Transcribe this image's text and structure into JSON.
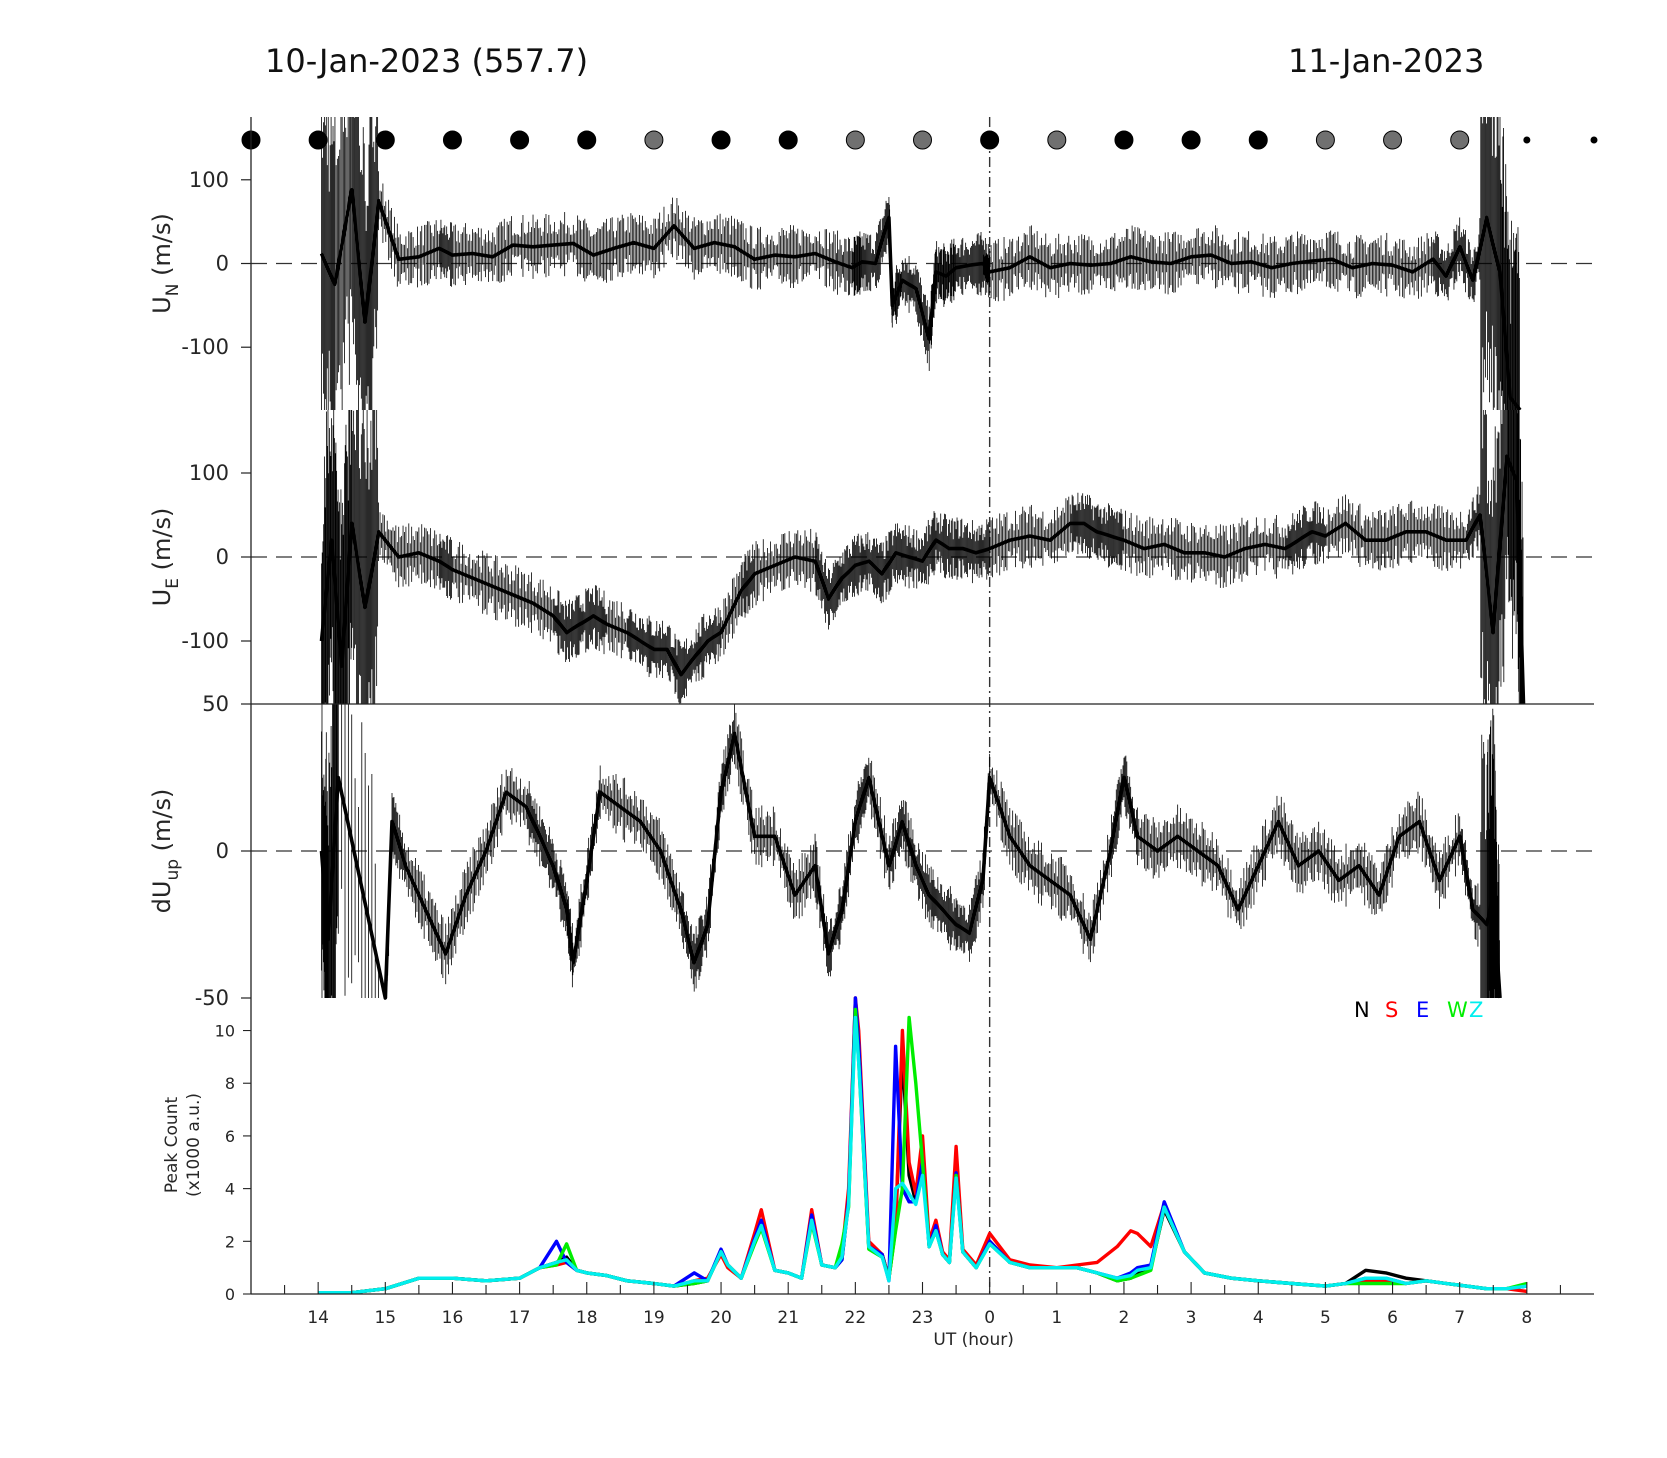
{
  "header": {
    "left": "10-Jan-2023 (557.7)",
    "right": "11-Jan-2023"
  },
  "colors": {
    "N": "#000000",
    "S": "#ff0000",
    "E": "#0000ff",
    "W": "#00ee00",
    "Z": "#00eeee",
    "dot_dark": "#000000",
    "dot_gray": "#707070"
  },
  "chart_data": [
    {
      "type": "line",
      "panel": "UN",
      "ylabel": "U",
      "ylabel_sub": "N",
      "ylabel_unit": "(m/s)",
      "ylim": [
        -175,
        175
      ],
      "yticks": [
        100,
        0,
        -100
      ],
      "x_range_hours": [
        13,
        33
      ],
      "sky_markers": [
        {
          "t": 13.0,
          "c": "dark"
        },
        {
          "t": 14.0,
          "c": "dark"
        },
        {
          "t": 15.0,
          "c": "dark"
        },
        {
          "t": 16.0,
          "c": "dark"
        },
        {
          "t": 17.0,
          "c": "dark"
        },
        {
          "t": 18.0,
          "c": "dark"
        },
        {
          "t": 19.0,
          "c": "gray"
        },
        {
          "t": 20.0,
          "c": "dark"
        },
        {
          "t": 21.0,
          "c": "dark"
        },
        {
          "t": 22.0,
          "c": "gray"
        },
        {
          "t": 23.0,
          "c": "gray"
        },
        {
          "t": 24.0,
          "c": "dark"
        },
        {
          "t": 25.0,
          "c": "gray"
        },
        {
          "t": 26.0,
          "c": "dark"
        },
        {
          "t": 27.0,
          "c": "dark"
        },
        {
          "t": 28.0,
          "c": "dark"
        },
        {
          "t": 29.0,
          "c": "gray"
        },
        {
          "t": 30.0,
          "c": "gray"
        },
        {
          "t": 31.0,
          "c": "gray"
        },
        {
          "t": 32.0,
          "c": "small"
        },
        {
          "t": 33.0,
          "c": "small"
        }
      ],
      "x": [
        14.05,
        14.25,
        14.5,
        14.7,
        14.9,
        15.2,
        15.5,
        15.8,
        16.0,
        16.3,
        16.6,
        16.9,
        17.2,
        17.5,
        17.8,
        18.1,
        18.4,
        18.7,
        19.0,
        19.3,
        19.6,
        19.9,
        20.2,
        20.5,
        20.8,
        21.1,
        21.4,
        21.7,
        21.95,
        22.1,
        22.3,
        22.5,
        22.55,
        22.7,
        22.9,
        23.1,
        23.2,
        23.35,
        23.5,
        23.7,
        23.9,
        24.0,
        24.3,
        24.6,
        24.9,
        25.2,
        25.5,
        25.8,
        26.1,
        26.4,
        26.7,
        27.0,
        27.3,
        27.6,
        27.9,
        28.2,
        28.5,
        28.8,
        29.1,
        29.4,
        29.7,
        30.0,
        30.3,
        30.6,
        30.8,
        31.0,
        31.2,
        31.4,
        31.6,
        31.75,
        31.9
      ],
      "y": [
        12,
        -25,
        88,
        -70,
        75,
        5,
        8,
        18,
        10,
        12,
        8,
        22,
        20,
        22,
        24,
        10,
        18,
        25,
        18,
        45,
        18,
        25,
        20,
        5,
        10,
        8,
        12,
        2,
        -5,
        2,
        0,
        55,
        -50,
        -20,
        -30,
        -90,
        -10,
        -15,
        -5,
        -2,
        0,
        -10,
        -5,
        8,
        -5,
        0,
        -2,
        0,
        8,
        2,
        0,
        8,
        10,
        0,
        2,
        -5,
        0,
        3,
        5,
        -5,
        0,
        -2,
        -10,
        5,
        -15,
        20,
        -20,
        55,
        -10,
        -160,
        -180
      ]
    },
    {
      "type": "line",
      "panel": "UE",
      "ylabel": "U",
      "ylabel_sub": "E",
      "ylabel_unit": "(m/s)",
      "ylim": [
        -175,
        175
      ],
      "yticks": [
        100,
        0,
        -100
      ],
      "x": [
        14.05,
        14.2,
        14.35,
        14.5,
        14.7,
        14.9,
        15.2,
        15.5,
        15.8,
        16.0,
        16.3,
        16.6,
        16.9,
        17.2,
        17.5,
        17.7,
        17.9,
        18.1,
        18.3,
        18.6,
        18.8,
        19.0,
        19.2,
        19.4,
        19.6,
        19.8,
        20.0,
        20.3,
        20.5,
        20.8,
        21.1,
        21.4,
        21.6,
        21.8,
        22.0,
        22.2,
        22.4,
        22.6,
        22.8,
        23.0,
        23.2,
        23.4,
        23.6,
        23.8,
        24.0,
        24.3,
        24.6,
        24.9,
        25.2,
        25.4,
        25.6,
        25.8,
        26.0,
        26.3,
        26.6,
        26.9,
        27.2,
        27.5,
        27.8,
        28.1,
        28.4,
        28.6,
        28.8,
        29.0,
        29.3,
        29.6,
        29.9,
        30.2,
        30.5,
        30.8,
        31.1,
        31.3,
        31.5,
        31.7,
        31.85,
        31.95
      ],
      "y": [
        -100,
        20,
        -130,
        40,
        -60,
        30,
        0,
        5,
        -5,
        -15,
        -25,
        -35,
        -45,
        -55,
        -70,
        -90,
        -80,
        -70,
        -80,
        -90,
        -100,
        -110,
        -110,
        -140,
        -120,
        -100,
        -90,
        -40,
        -20,
        -10,
        0,
        -5,
        -50,
        -25,
        -10,
        -5,
        -20,
        5,
        0,
        -5,
        20,
        10,
        10,
        5,
        10,
        20,
        25,
        20,
        40,
        40,
        30,
        25,
        20,
        10,
        15,
        5,
        5,
        0,
        10,
        15,
        10,
        20,
        30,
        25,
        40,
        20,
        20,
        30,
        30,
        20,
        20,
        50,
        -90,
        120,
        90,
        -180
      ]
    },
    {
      "type": "line",
      "panel": "dUup",
      "ylabel": "dU",
      "ylabel_sub": "up",
      "ylabel_unit": "(m/s)",
      "ylim": [
        -50,
        50
      ],
      "yticks": [
        50,
        0,
        -50
      ],
      "x": [
        14.05,
        14.15,
        14.3,
        15.0,
        15.1,
        15.3,
        15.6,
        15.9,
        16.2,
        16.5,
        16.8,
        17.1,
        17.3,
        17.5,
        17.7,
        17.8,
        18.0,
        18.2,
        18.5,
        18.8,
        19.1,
        19.4,
        19.6,
        19.8,
        20.0,
        20.2,
        20.5,
        20.8,
        21.1,
        21.4,
        21.6,
        21.8,
        22.0,
        22.2,
        22.5,
        22.7,
        22.9,
        23.1,
        23.3,
        23.5,
        23.7,
        23.9,
        24.0,
        24.3,
        24.6,
        24.9,
        25.2,
        25.5,
        25.8,
        26.0,
        26.2,
        26.5,
        26.8,
        27.1,
        27.4,
        27.7,
        28.0,
        28.3,
        28.6,
        28.9,
        29.2,
        29.5,
        29.8,
        30.1,
        30.4,
        30.7,
        31.0,
        31.2,
        31.4,
        31.5,
        31.6
      ],
      "y": [
        0,
        -30,
        25,
        -60,
        10,
        -5,
        -20,
        -35,
        -15,
        0,
        20,
        15,
        5,
        -5,
        -20,
        -38,
        -10,
        20,
        15,
        10,
        0,
        -20,
        -38,
        -25,
        20,
        40,
        5,
        5,
        -15,
        -5,
        -35,
        -20,
        10,
        25,
        -5,
        10,
        -5,
        -15,
        -20,
        -25,
        -28,
        -10,
        25,
        5,
        -5,
        -10,
        -15,
        -30,
        0,
        25,
        5,
        0,
        5,
        0,
        -5,
        -20,
        -5,
        10,
        -5,
        0,
        -10,
        -5,
        -15,
        5,
        10,
        -10,
        5,
        -20,
        -25,
        -15,
        -60
      ]
    },
    {
      "type": "line",
      "panel": "peak",
      "ylabel": "Peak Count",
      "ylabel_unit": "(x1000 a.u.)",
      "ylim": [
        0,
        10.4
      ],
      "yticks": [
        0,
        2,
        4,
        6,
        8,
        10
      ],
      "xlabel": "UT (hour)",
      "xticklabels": [
        "14",
        "15",
        "16",
        "17",
        "18",
        "19",
        "20",
        "21",
        "22",
        "23",
        "0",
        "1",
        "2",
        "3",
        "4",
        "5",
        "6",
        "7",
        "8"
      ],
      "legend": [
        "N",
        "S",
        "E",
        "W",
        "Z"
      ],
      "legend_placement": "top-right",
      "x": [
        14.0,
        14.5,
        15.0,
        15.5,
        16.0,
        16.5,
        17.0,
        17.3,
        17.55,
        17.7,
        17.85,
        18.0,
        18.3,
        18.6,
        19.0,
        19.3,
        19.6,
        19.8,
        20.0,
        20.1,
        20.3,
        20.5,
        20.6,
        20.8,
        21.0,
        21.2,
        21.35,
        21.5,
        21.7,
        21.8,
        21.9,
        22.0,
        22.05,
        22.2,
        22.4,
        22.5,
        22.6,
        22.7,
        22.8,
        22.9,
        23.0,
        23.1,
        23.2,
        23.3,
        23.4,
        23.5,
        23.6,
        23.8,
        24.0,
        24.3,
        24.6,
        25.0,
        25.3,
        25.6,
        25.9,
        26.1,
        26.2,
        26.4,
        26.6,
        26.9,
        27.2,
        27.6,
        28.0,
        28.5,
        29.0,
        29.3,
        29.6,
        29.9,
        30.2,
        30.5,
        30.8,
        31.1,
        31.4,
        31.7,
        32.0
      ],
      "series": [
        {
          "name": "N",
          "color_key": "N",
          "values": [
            0.05,
            0.05,
            0.2,
            0.6,
            0.6,
            0.5,
            0.6,
            1.0,
            1.2,
            1.4,
            0.9,
            0.8,
            0.7,
            0.5,
            0.4,
            0.3,
            0.4,
            0.5,
            1.6,
            1.1,
            0.6,
            2.0,
            2.6,
            0.9,
            0.8,
            0.6,
            2.9,
            1.1,
            1.0,
            1.3,
            3.5,
            11.0,
            9.0,
            1.8,
            1.5,
            0.6,
            2.5,
            9.2,
            4.5,
            3.5,
            5.5,
            1.8,
            2.5,
            1.5,
            1.2,
            4.8,
            1.6,
            1.0,
            2.0,
            1.2,
            1.0,
            1.0,
            1.0,
            0.8,
            0.5,
            0.6,
            0.8,
            1.0,
            3.2,
            1.6,
            0.8,
            0.6,
            0.5,
            0.4,
            0.3,
            0.4,
            0.9,
            0.8,
            0.6,
            0.5,
            0.4,
            0.3,
            0.2,
            0.2,
            0.3
          ]
        },
        {
          "name": "S",
          "color_key": "S",
          "values": [
            0.05,
            0.05,
            0.2,
            0.6,
            0.6,
            0.5,
            0.6,
            1.0,
            1.1,
            1.2,
            0.9,
            0.8,
            0.7,
            0.5,
            0.4,
            0.3,
            0.5,
            0.6,
            1.5,
            1.0,
            0.6,
            2.3,
            3.2,
            0.9,
            0.8,
            0.6,
            3.2,
            1.1,
            1.0,
            1.5,
            4.0,
            12.0,
            10.0,
            2.0,
            1.5,
            0.6,
            2.5,
            10.0,
            5.0,
            3.8,
            6.0,
            2.0,
            2.8,
            1.6,
            1.3,
            5.6,
            1.7,
            1.1,
            2.3,
            1.3,
            1.1,
            1.0,
            1.1,
            1.2,
            1.8,
            2.4,
            2.3,
            1.8,
            3.4,
            1.6,
            0.8,
            0.6,
            0.5,
            0.4,
            0.3,
            0.4,
            0.5,
            0.5,
            0.4,
            0.5,
            0.4,
            0.3,
            0.2,
            0.2,
            0.1
          ]
        },
        {
          "name": "E",
          "color_key": "E",
          "values": [
            0.05,
            0.05,
            0.2,
            0.6,
            0.6,
            0.5,
            0.6,
            1.0,
            2.0,
            1.2,
            0.9,
            0.8,
            0.7,
            0.5,
            0.4,
            0.3,
            0.8,
            0.5,
            1.7,
            1.1,
            0.6,
            2.1,
            2.8,
            0.9,
            0.8,
            0.6,
            3.0,
            1.1,
            1.0,
            1.3,
            3.6,
            11.5,
            9.5,
            1.8,
            1.5,
            0.5,
            9.4,
            4.0,
            3.5,
            3.5,
            5.0,
            1.8,
            2.6,
            1.5,
            1.2,
            4.6,
            1.6,
            1.0,
            2.0,
            1.2,
            1.0,
            1.0,
            1.0,
            0.8,
            0.6,
            0.8,
            1.0,
            1.1,
            3.5,
            1.6,
            0.8,
            0.6,
            0.5,
            0.4,
            0.3,
            0.4,
            0.6,
            0.6,
            0.4,
            0.5,
            0.4,
            0.3,
            0.2,
            0.2,
            0.3
          ]
        },
        {
          "name": "W",
          "color_key": "W",
          "values": [
            0.05,
            0.05,
            0.2,
            0.6,
            0.6,
            0.5,
            0.6,
            1.0,
            1.1,
            1.9,
            0.9,
            0.8,
            0.7,
            0.5,
            0.4,
            0.3,
            0.4,
            0.5,
            1.6,
            1.1,
            0.6,
            1.9,
            2.5,
            0.9,
            0.8,
            0.6,
            2.7,
            1.1,
            1.0,
            1.9,
            3.3,
            10.8,
            8.8,
            1.7,
            1.4,
            0.6,
            2.4,
            4.0,
            10.5,
            8.0,
            5.0,
            1.8,
            2.4,
            1.5,
            1.2,
            4.5,
            1.6,
            1.0,
            1.9,
            1.2,
            1.0,
            1.0,
            1.0,
            0.8,
            0.5,
            0.6,
            0.7,
            0.9,
            3.3,
            1.6,
            0.8,
            0.6,
            0.5,
            0.4,
            0.3,
            0.4,
            0.4,
            0.4,
            0.4,
            0.5,
            0.4,
            0.3,
            0.2,
            0.2,
            0.4
          ]
        },
        {
          "name": "Z",
          "color_key": "Z",
          "values": [
            0.05,
            0.05,
            0.2,
            0.6,
            0.6,
            0.5,
            0.6,
            1.0,
            1.2,
            1.3,
            0.9,
            0.8,
            0.7,
            0.5,
            0.4,
            0.3,
            0.5,
            0.5,
            1.6,
            1.1,
            0.6,
            2.0,
            2.6,
            0.9,
            0.8,
            0.6,
            2.8,
            1.1,
            1.0,
            1.4,
            3.4,
            10.5,
            8.8,
            1.8,
            1.4,
            0.5,
            4.0,
            4.2,
            3.8,
            3.4,
            4.5,
            1.8,
            2.4,
            1.5,
            1.2,
            4.4,
            1.6,
            1.0,
            1.9,
            1.2,
            1.0,
            1.0,
            1.0,
            0.8,
            0.6,
            0.7,
            0.9,
            1.0,
            3.3,
            1.6,
            0.8,
            0.6,
            0.5,
            0.4,
            0.3,
            0.4,
            0.6,
            0.6,
            0.4,
            0.5,
            0.4,
            0.3,
            0.2,
            0.2,
            0.3
          ]
        }
      ]
    }
  ]
}
